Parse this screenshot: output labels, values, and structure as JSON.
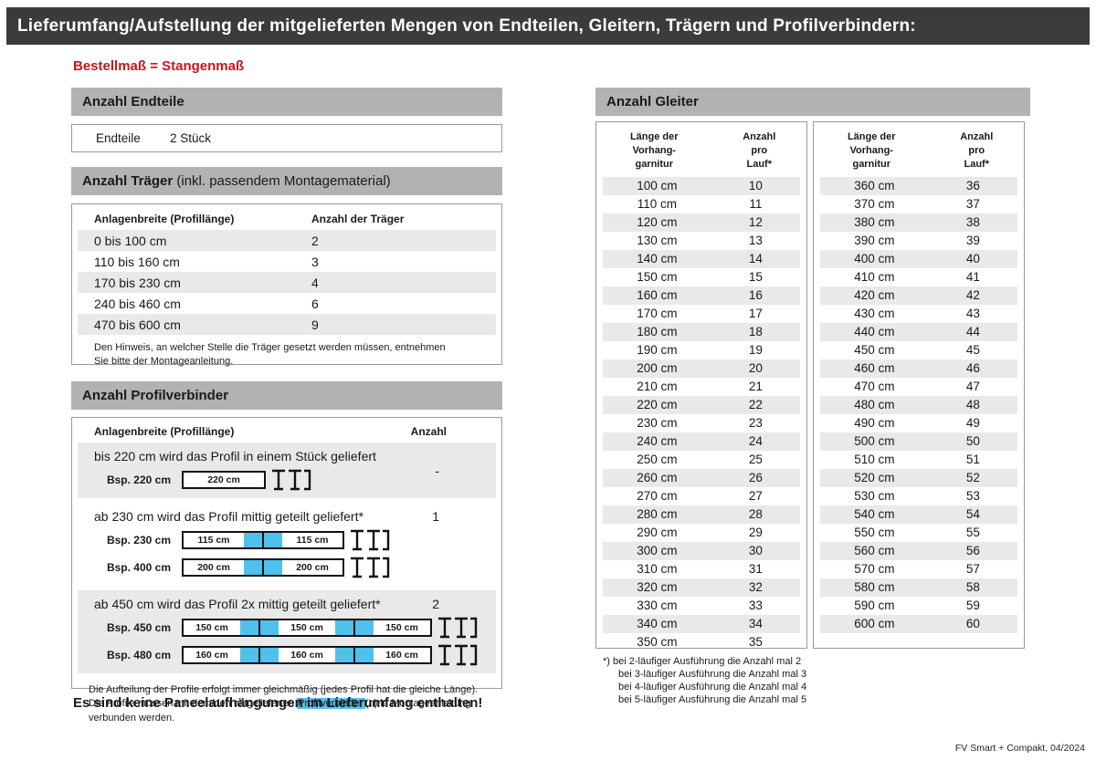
{
  "page": {
    "title": "Lieferumfang/Aufstellung der mitgelieferten Mengen von Endteilen, Gleitern, Trägern und Profilverbindern:",
    "subtitle": "Bestellmaß = Stangenmaß",
    "footer_note": "FV Smart + Compakt, 04/2024",
    "colors": {
      "topbar": "#3b3b3b",
      "section_header": "#b2b2b2",
      "row_stripe": "#e9e9e9",
      "accent_blue": "#4fc1ec",
      "accent_red": "#c4161c"
    }
  },
  "endteile": {
    "header": "Anzahl Endteile",
    "label": "Endteile",
    "value": "2 Stück"
  },
  "traeger": {
    "header_bold": "Anzahl Träger",
    "header_rest": " (inkl. passendem Montagematerial)",
    "col1": "Anlagenbreite (Profillänge)",
    "col2": "Anzahl der Träger",
    "rows": [
      {
        "range": "0 bis 100 cm",
        "count": "2"
      },
      {
        "range": "110 bis 160 cm",
        "count": "3"
      },
      {
        "range": "170 bis 230 cm",
        "count": "4"
      },
      {
        "range": "240 bis 460 cm",
        "count": "6"
      },
      {
        "range": "470 bis 600 cm",
        "count": "9"
      }
    ],
    "note": "Den Hinweis, an welcher Stelle die Träger gesetzt werden müssen, entnehmen Sie bitte der Montageanleitung."
  },
  "profilverbinder": {
    "header": "Anzahl Profilverbinder",
    "col1": "Anlagenbreite (Profillänge)",
    "col2": "Anzahl",
    "blocks": [
      {
        "text": "bis 220 cm wird das Profil in einem Stück geliefert",
        "anzahl": "-",
        "shaded": true,
        "anzahl_center": true,
        "diagrams": [
          {
            "label": "Bsp. 220 cm",
            "segments": [
              "220 cm"
            ]
          }
        ]
      },
      {
        "text": "ab 230 cm wird das Profil mittig geteilt geliefert*",
        "anzahl": "1",
        "shaded": false,
        "anzahl_center": false,
        "diagrams": [
          {
            "label": "Bsp. 230 cm",
            "segments": [
              "115 cm",
              "115 cm"
            ]
          },
          {
            "label": "Bsp. 400 cm",
            "segments": [
              "200 cm",
              "200 cm"
            ]
          }
        ]
      },
      {
        "text": "ab 450 cm wird das Profil 2x mittig geteilt geliefert*",
        "anzahl": "2",
        "shaded": true,
        "anzahl_center": false,
        "diagrams": [
          {
            "label": "Bsp. 450 cm",
            "segments": [
              "150 cm",
              "150 cm",
              "150 cm"
            ]
          },
          {
            "label": "Bsp. 480 cm",
            "segments": [
              "160 cm",
              "160 cm",
              "160 cm"
            ]
          }
        ]
      }
    ],
    "note_before": "Die Aufteilung der Profile erfolgt immer gleichmäßig (jedes Profil hat die gleiche Länge). Die Profile müssen mit dem/den mitgelieferten ",
    "note_highlight": "Profilverbinder",
    "note_after": "(n) lt. Montageanleitung verbunden werden."
  },
  "no_paneel_note": "Es sind keine Paneelaufhängungen im Lieferumfang enthalten!",
  "gleiter": {
    "header": "Anzahl Gleiter",
    "col1": "Länge der\nVorhang-\ngarnitur",
    "col2": "Anzahl\npro\nLauf*",
    "table1": [
      [
        "100 cm",
        "10"
      ],
      [
        "110 cm",
        "11"
      ],
      [
        "120 cm",
        "12"
      ],
      [
        "130 cm",
        "13"
      ],
      [
        "140 cm",
        "14"
      ],
      [
        "150 cm",
        "15"
      ],
      [
        "160 cm",
        "16"
      ],
      [
        "170 cm",
        "17"
      ],
      [
        "180 cm",
        "18"
      ],
      [
        "190 cm",
        "19"
      ],
      [
        "200 cm",
        "20"
      ],
      [
        "210 cm",
        "21"
      ],
      [
        "220 cm",
        "22"
      ],
      [
        "230 cm",
        "23"
      ],
      [
        "240 cm",
        "24"
      ],
      [
        "250 cm",
        "25"
      ],
      [
        "260 cm",
        "26"
      ],
      [
        "270 cm",
        "27"
      ],
      [
        "280 cm",
        "28"
      ],
      [
        "290 cm",
        "29"
      ],
      [
        "300 cm",
        "30"
      ],
      [
        "310 cm",
        "31"
      ],
      [
        "320 cm",
        "32"
      ],
      [
        "330 cm",
        "33"
      ],
      [
        "340 cm",
        "34"
      ],
      [
        "350 cm",
        "35"
      ]
    ],
    "table2": [
      [
        "360 cm",
        "36"
      ],
      [
        "370 cm",
        "37"
      ],
      [
        "380 cm",
        "38"
      ],
      [
        "390 cm",
        "39"
      ],
      [
        "400 cm",
        "40"
      ],
      [
        "410 cm",
        "41"
      ],
      [
        "420 cm",
        "42"
      ],
      [
        "430 cm",
        "43"
      ],
      [
        "440 cm",
        "44"
      ],
      [
        "450 cm",
        "45"
      ],
      [
        "460 cm",
        "46"
      ],
      [
        "470 cm",
        "47"
      ],
      [
        "480 cm",
        "48"
      ],
      [
        "490 cm",
        "49"
      ],
      [
        "500 cm",
        "50"
      ],
      [
        "510 cm",
        "51"
      ],
      [
        "520 cm",
        "52"
      ],
      [
        "530 cm",
        "53"
      ],
      [
        "540 cm",
        "54"
      ],
      [
        "550 cm",
        "55"
      ],
      [
        "560 cm",
        "56"
      ],
      [
        "570 cm",
        "57"
      ],
      [
        "580 cm",
        "58"
      ],
      [
        "590 cm",
        "59"
      ],
      [
        "600 cm",
        "60"
      ]
    ],
    "footnotes": [
      "*) bei 2-läufiger Ausführung die Anzahl mal 2",
      "bei 3-läufiger Ausführung die Anzahl mal 3",
      "bei 4-läufiger Ausführung die Anzahl mal 4",
      "bei 5-läufiger Ausführung die Anzahl mal 5"
    ]
  }
}
